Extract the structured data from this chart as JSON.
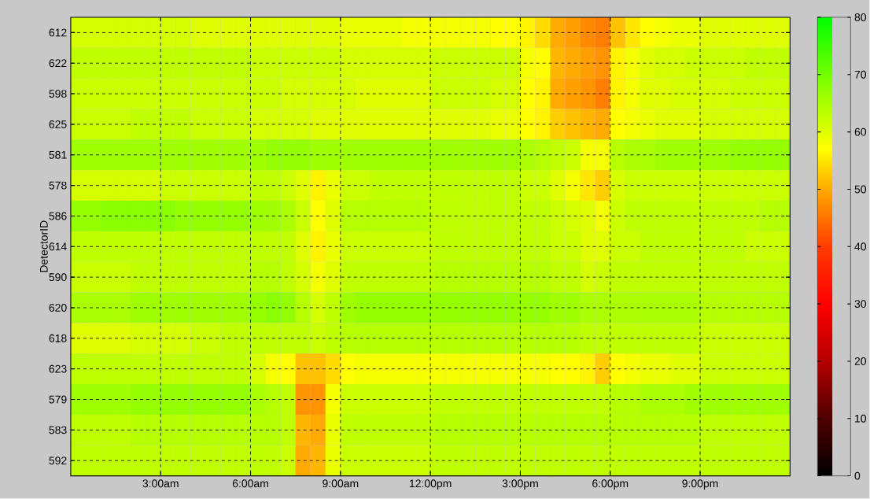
{
  "chart_data": {
    "type": "heatmap",
    "ylabel": "DetectorID",
    "x": [
      0.25,
      0.75,
      1.25,
      1.75,
      2.25,
      2.75,
      3.25,
      3.75,
      4.25,
      4.75,
      5.25,
      5.75,
      6.25,
      6.75,
      7.25,
      7.75,
      8.25,
      8.75,
      9.25,
      9.75,
      10.25,
      10.75,
      11.25,
      11.75,
      12.25,
      12.75,
      13.25,
      13.75,
      14.25,
      14.75,
      15.25,
      15.75,
      16.25,
      16.75,
      17.25,
      17.75,
      18.25,
      18.75,
      19.25,
      19.75,
      20.25,
      20.75,
      21.25,
      21.75,
      22.25,
      22.75,
      23.25,
      23.75
    ],
    "xlim": [
      0,
      24
    ],
    "xticks": [
      {
        "value": 3,
        "label": "3:00am"
      },
      {
        "value": 6,
        "label": "6:00am"
      },
      {
        "value": 9,
        "label": "9:00am"
      },
      {
        "value": 12,
        "label": "12:00pm"
      },
      {
        "value": 15,
        "label": "3:00pm"
      },
      {
        "value": 18,
        "label": "6:00pm"
      },
      {
        "value": 21,
        "label": "9:00pm"
      }
    ],
    "y_categories": [
      "612",
      "622",
      "598",
      "625",
      "581",
      "578",
      "586",
      "614",
      "590",
      "620",
      "618",
      "623",
      "579",
      "583",
      "592"
    ],
    "cells": [
      [
        61,
        61,
        61,
        61,
        61,
        61,
        61,
        61,
        60,
        60,
        60,
        60,
        60,
        60,
        60,
        60,
        60,
        60,
        59,
        59,
        59,
        59,
        58,
        58,
        58,
        58,
        58,
        58,
        57,
        57,
        56,
        54,
        50,
        49,
        47,
        46,
        52,
        55,
        57,
        58,
        59,
        59,
        60,
        60,
        60,
        60,
        60,
        60
      ],
      [
        63,
        63,
        63,
        63,
        63,
        63,
        63,
        63,
        63,
        63,
        63,
        63,
        62,
        62,
        62,
        62,
        62,
        62,
        61,
        61,
        61,
        61,
        61,
        61,
        62,
        62,
        62,
        62,
        62,
        62,
        58,
        57,
        51,
        50,
        49,
        48,
        56,
        58,
        60,
        61,
        61,
        62,
        62,
        62,
        62,
        63,
        63,
        63
      ],
      [
        62,
        62,
        62,
        62,
        62,
        62,
        62,
        62,
        62,
        62,
        62,
        62,
        62,
        62,
        61,
        61,
        61,
        61,
        61,
        60,
        60,
        60,
        60,
        60,
        62,
        62,
        62,
        62,
        61,
        61,
        57,
        56,
        50,
        49,
        48,
        46,
        56,
        58,
        60,
        60,
        61,
        61,
        61,
        61,
        62,
        62,
        62,
        62
      ],
      [
        62,
        62,
        62,
        62,
        63,
        63,
        63,
        63,
        62,
        62,
        62,
        62,
        61,
        61,
        61,
        61,
        60,
        60,
        60,
        60,
        60,
        60,
        60,
        60,
        60,
        60,
        60,
        60,
        59,
        59,
        57,
        56,
        53,
        52,
        51,
        50,
        57,
        58,
        59,
        60,
        60,
        60,
        61,
        61,
        61,
        61,
        61,
        61
      ],
      [
        66,
        66,
        66,
        66,
        66,
        66,
        66,
        66,
        66,
        66,
        66,
        66,
        66,
        67,
        67,
        67,
        66,
        66,
        66,
        66,
        66,
        66,
        66,
        66,
        66,
        66,
        66,
        66,
        66,
        66,
        65,
        64,
        63,
        62,
        58,
        58,
        64,
        65,
        65,
        66,
        66,
        66,
        66,
        66,
        67,
        67,
        67,
        67
      ],
      [
        61,
        61,
        61,
        61,
        61,
        61,
        62,
        62,
        62,
        62,
        62,
        62,
        63,
        63,
        62,
        60,
        56,
        59,
        62,
        62,
        63,
        63,
        63,
        63,
        63,
        63,
        63,
        63,
        63,
        63,
        62,
        62,
        60,
        58,
        55,
        53,
        61,
        62,
        62,
        62,
        62,
        62,
        62,
        62,
        62,
        62,
        62,
        62
      ],
      [
        67,
        67,
        68,
        68,
        68,
        68,
        68,
        67,
        67,
        67,
        67,
        67,
        66,
        66,
        65,
        62,
        57,
        60,
        64,
        64,
        64,
        64,
        64,
        64,
        63,
        63,
        63,
        63,
        63,
        63,
        63,
        63,
        62,
        61,
        60,
        58,
        62,
        63,
        63,
        63,
        63,
        63,
        63,
        63,
        63,
        63,
        64,
        64
      ],
      [
        63,
        63,
        63,
        63,
        63,
        63,
        63,
        63,
        63,
        63,
        63,
        63,
        63,
        63,
        63,
        60,
        56,
        59,
        62,
        62,
        62,
        62,
        62,
        62,
        63,
        63,
        63,
        63,
        63,
        63,
        63,
        63,
        62,
        62,
        60,
        60,
        62,
        62,
        63,
        63,
        63,
        63,
        63,
        63,
        63,
        62,
        62,
        62
      ],
      [
        62,
        62,
        62,
        62,
        63,
        63,
        63,
        63,
        63,
        63,
        63,
        63,
        64,
        64,
        63,
        61,
        58,
        60,
        63,
        63,
        63,
        63,
        63,
        63,
        64,
        64,
        64,
        64,
        64,
        64,
        64,
        64,
        63,
        63,
        61,
        62,
        63,
        63,
        63,
        63,
        63,
        63,
        63,
        63,
        63,
        63,
        63,
        63
      ],
      [
        65,
        65,
        65,
        65,
        66,
        66,
        66,
        66,
        66,
        66,
        66,
        66,
        67,
        68,
        67,
        64,
        61,
        63,
        66,
        67,
        67,
        67,
        67,
        67,
        67,
        67,
        67,
        67,
        67,
        67,
        67,
        67,
        66,
        66,
        65,
        65,
        65,
        65,
        65,
        65,
        65,
        65,
        64,
        64,
        64,
        64,
        64,
        64
      ],
      [
        60,
        60,
        60,
        60,
        61,
        61,
        61,
        61,
        62,
        62,
        63,
        63,
        63,
        63,
        63,
        63,
        62,
        63,
        64,
        64,
        64,
        64,
        64,
        64,
        64,
        64,
        64,
        64,
        64,
        64,
        64,
        64,
        64,
        64,
        63,
        63,
        63,
        63,
        63,
        63,
        63,
        63,
        62,
        62,
        62,
        62,
        62,
        62
      ],
      [
        63,
        63,
        63,
        63,
        63,
        63,
        63,
        63,
        63,
        63,
        63,
        63,
        61,
        58,
        57,
        52,
        52,
        54,
        57,
        58,
        58,
        58,
        58,
        58,
        58,
        58,
        58,
        58,
        58,
        58,
        58,
        58,
        57,
        57,
        56,
        53,
        57,
        58,
        59,
        59,
        60,
        60,
        62,
        62,
        62,
        62,
        62,
        62
      ],
      [
        66,
        66,
        66,
        66,
        67,
        67,
        67,
        67,
        67,
        67,
        67,
        67,
        65,
        64,
        63,
        48,
        48,
        58,
        62,
        62,
        62,
        62,
        62,
        62,
        63,
        63,
        63,
        63,
        63,
        63,
        63,
        63,
        63,
        63,
        63,
        63,
        64,
        64,
        65,
        65,
        65,
        66,
        66,
        66,
        66,
        66,
        66,
        66
      ],
      [
        63,
        63,
        63,
        63,
        64,
        64,
        64,
        64,
        64,
        64,
        64,
        64,
        64,
        64,
        63,
        51,
        50,
        59,
        63,
        63,
        63,
        63,
        63,
        63,
        64,
        64,
        64,
        64,
        64,
        64,
        64,
        64,
        64,
        64,
        64,
        64,
        64,
        64,
        64,
        64,
        64,
        64,
        63,
        63,
        63,
        63,
        63,
        63
      ],
      [
        63,
        63,
        63,
        63,
        63,
        63,
        63,
        63,
        63,
        63,
        63,
        63,
        63,
        63,
        62,
        50,
        51,
        59,
        62,
        62,
        62,
        62,
        62,
        62,
        63,
        63,
        63,
        63,
        63,
        63,
        63,
        63,
        63,
        63,
        63,
        63,
        63,
        63,
        63,
        63,
        63,
        63,
        63,
        63,
        63,
        63,
        63,
        63
      ]
    ],
    "clim": [
      0,
      80
    ],
    "cticks": [
      0,
      10,
      20,
      30,
      40,
      50,
      60,
      70,
      80
    ],
    "grid": true
  }
}
